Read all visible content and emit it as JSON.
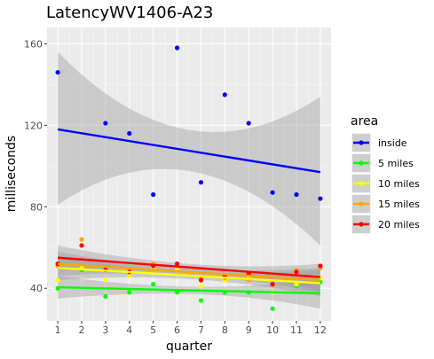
{
  "chart_data": {
    "type": "scatter",
    "title": "LatencyWV1406-A23",
    "xlabel": "quarter",
    "ylabel": "milliseconds",
    "xlim": [
      0.55,
      12.45
    ],
    "ylim": [
      24,
      168
    ],
    "x_ticks": [
      1,
      2,
      3,
      4,
      5,
      6,
      7,
      8,
      9,
      10,
      11,
      12
    ],
    "y_ticks": [
      40,
      80,
      120,
      160
    ],
    "grid": true,
    "legend": {
      "title": "area",
      "position": "right"
    },
    "series": [
      {
        "name": "inside",
        "color": "#0000ff",
        "points": [
          [
            1,
            146
          ],
          [
            3,
            121
          ],
          [
            4,
            116
          ],
          [
            5,
            86
          ],
          [
            6,
            158
          ],
          [
            7,
            92
          ],
          [
            8,
            135
          ],
          [
            9,
            121
          ],
          [
            10,
            87
          ],
          [
            11,
            86
          ],
          [
            12,
            84
          ]
        ],
        "fit": {
          "start": 118,
          "end": 97,
          "band_low": [
            81,
            61
          ],
          "band_high": [
            156,
            134
          ]
        }
      },
      {
        "name": "5 miles",
        "color": "#00ff00",
        "points": [
          [
            1,
            40
          ],
          [
            2,
            49
          ],
          [
            3,
            36
          ],
          [
            4,
            38
          ],
          [
            5,
            42
          ],
          [
            6,
            38
          ],
          [
            7,
            34
          ],
          [
            8,
            38
          ],
          [
            9,
            38
          ],
          [
            10,
            30
          ],
          [
            11,
            41
          ],
          [
            12,
            43
          ]
        ],
        "fit": {
          "start": 40.5,
          "end": 37.5,
          "band_low": [
            35,
            30
          ],
          "band_high": [
            46,
            45
          ]
        }
      },
      {
        "name": "10 miles",
        "color": "#ffff00",
        "points": [
          [
            1,
            44
          ],
          [
            2,
            50
          ],
          [
            3,
            44
          ],
          [
            4,
            46
          ],
          [
            5,
            50
          ],
          [
            6,
            49
          ],
          [
            7,
            41
          ],
          [
            8,
            44
          ],
          [
            9,
            45
          ],
          [
            10,
            38
          ],
          [
            11,
            42
          ],
          [
            12,
            45
          ]
        ],
        "fit": {
          "start": 50,
          "end": 42.5,
          "band_low": [
            44,
            36
          ],
          "band_high": [
            56,
            49
          ]
        }
      },
      {
        "name": "15 miles",
        "color": "#ffa500",
        "points": [
          [
            1,
            51
          ],
          [
            2,
            64
          ],
          [
            3,
            50
          ],
          [
            4,
            49
          ],
          [
            5,
            52
          ],
          [
            6,
            52
          ],
          [
            7,
            45
          ],
          [
            8,
            45
          ],
          [
            9,
            44
          ],
          [
            10,
            42
          ],
          [
            11,
            49
          ],
          [
            12,
            50
          ]
        ],
        "fit": {
          "start": 52,
          "end": 44,
          "band_low": [
            46,
            38
          ],
          "band_high": [
            58,
            50
          ]
        }
      },
      {
        "name": "20 miles",
        "color": "#ff0000",
        "points": [
          [
            1,
            52
          ],
          [
            2,
            61
          ],
          [
            3,
            49
          ],
          [
            4,
            48
          ],
          [
            5,
            51
          ],
          [
            6,
            52
          ],
          [
            7,
            44
          ],
          [
            8,
            46
          ],
          [
            9,
            47
          ],
          [
            10,
            42
          ],
          [
            11,
            48
          ],
          [
            12,
            51
          ]
        ],
        "fit": {
          "start": 55,
          "end": 45.5,
          "band_low": [
            49,
            39
          ],
          "band_high": [
            61,
            52
          ]
        }
      }
    ]
  }
}
